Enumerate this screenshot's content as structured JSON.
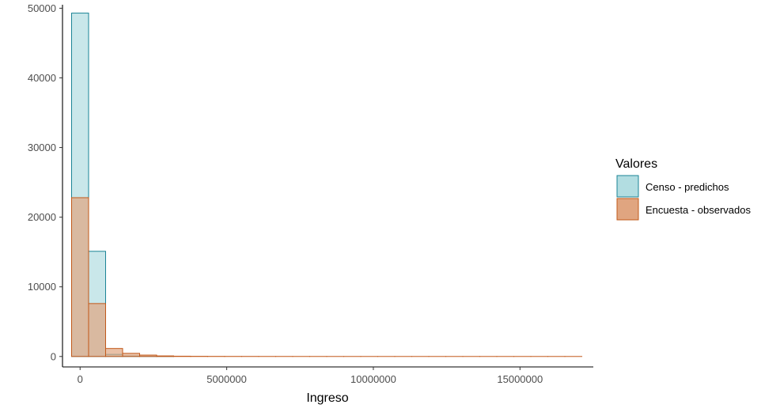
{
  "chart_data": {
    "type": "bar",
    "subtype": "histogram-overlay",
    "xlabel": "Ingreso",
    "ylabel": "",
    "xlim": [
      -600000,
      17500000
    ],
    "ylim": [
      -1500,
      50500
    ],
    "x_ticks": [
      0,
      5000000,
      10000000,
      15000000
    ],
    "x_tick_labels": [
      "0",
      "5000000",
      "10000000",
      "15000000"
    ],
    "y_ticks": [
      0,
      10000,
      20000,
      30000,
      40000,
      50000
    ],
    "y_tick_labels": [
      "0",
      "10000",
      "20000",
      "30000",
      "40000",
      "50000"
    ],
    "bin_width": 580000,
    "bin_starts": [
      -290000,
      290000,
      870000,
      1450000,
      2030000,
      2610000,
      3190000,
      3770000,
      4350000,
      4930000,
      5510000,
      6090000,
      6670000,
      7250000,
      7830000,
      8410000,
      8990000,
      9570000,
      10150000,
      10730000,
      11310000,
      11890000,
      12470000,
      13050000,
      13630000,
      14210000,
      14790000,
      15370000,
      15950000,
      16530000
    ],
    "series": [
      {
        "name": "Censo - predichos",
        "fill": "#b2dde1",
        "stroke": "#1b8496",
        "values": [
          49300,
          15100,
          300,
          60,
          20,
          5,
          0,
          0,
          0,
          0,
          0,
          0,
          0,
          0,
          0,
          0,
          0,
          0,
          0,
          0,
          0,
          0,
          0,
          0,
          0,
          0,
          0,
          0,
          0,
          0
        ]
      },
      {
        "name": "Encuesta - observados",
        "fill": "#e0a580",
        "stroke": "#c2591a",
        "values": [
          22800,
          7600,
          1150,
          450,
          200,
          80,
          40,
          25,
          15,
          10,
          8,
          5,
          5,
          3,
          3,
          2,
          2,
          2,
          1,
          1,
          1,
          1,
          1,
          1,
          1,
          1,
          1,
          1,
          1,
          1
        ]
      }
    ],
    "legend": {
      "title": "Valores",
      "position": "right",
      "items": [
        {
          "label": "Censo - predichos",
          "fill": "#b2dde1",
          "stroke": "#1b8496"
        },
        {
          "label": "Encuesta - observados",
          "fill": "#e0a580",
          "stroke": "#c2591a"
        }
      ]
    },
    "grid": false
  }
}
